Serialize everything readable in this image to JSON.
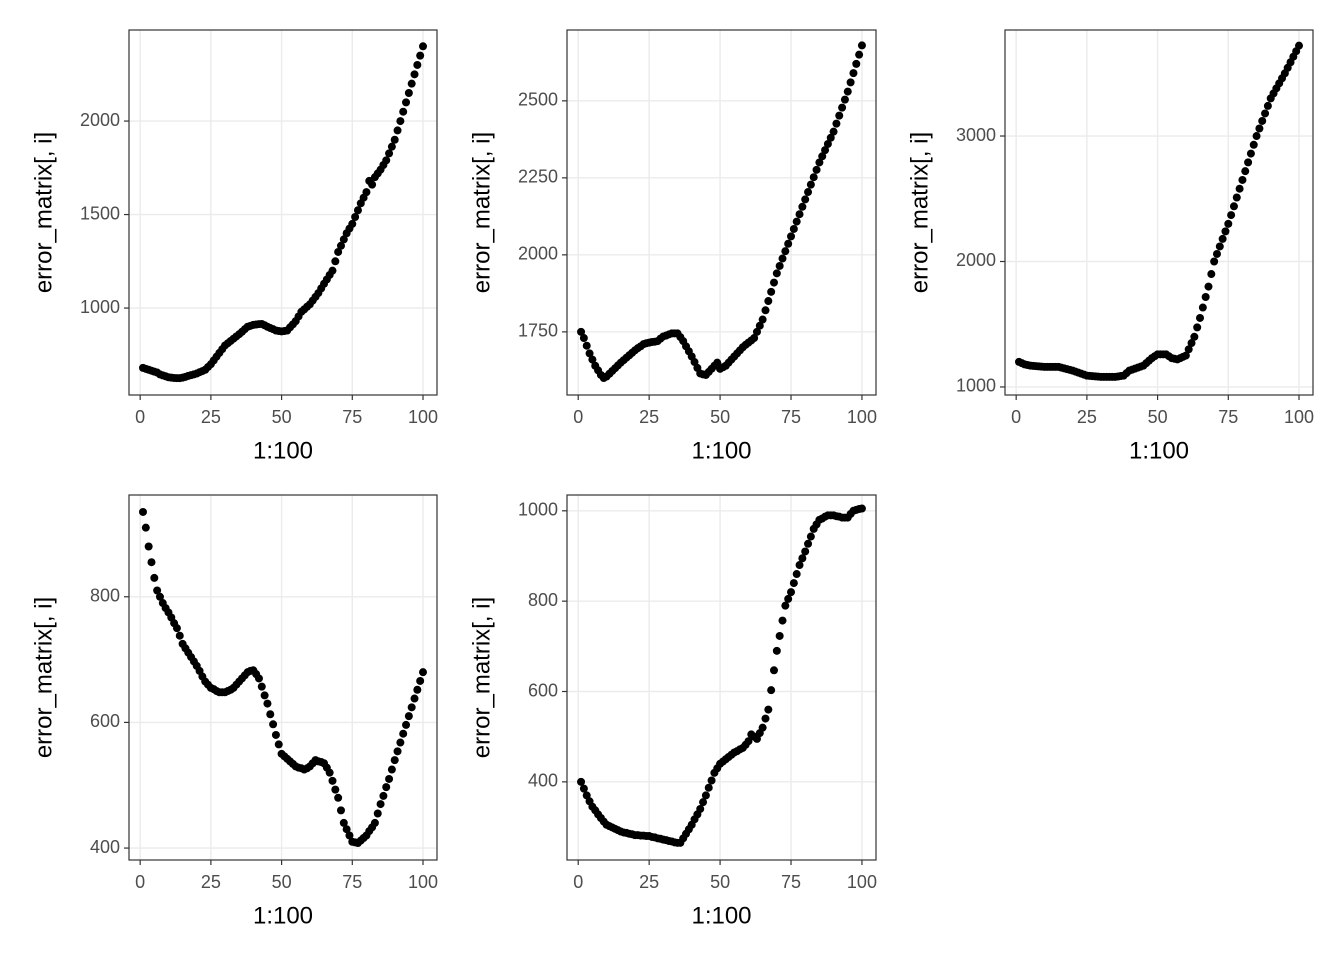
{
  "chart_data": [
    {
      "type": "scatter",
      "x_label": "1:100",
      "y_label": "error_matrix[, i]",
      "color": "#000000",
      "grid": true,
      "xlim": [
        -3.95,
        104.95
      ],
      "xticks": [
        0,
        25,
        50,
        75,
        100
      ],
      "ylim": [
        535,
        2487
      ],
      "yticks": [
        1000,
        1500,
        2000
      ],
      "x": [
        1,
        2,
        3,
        4,
        5,
        6,
        7,
        8,
        9,
        10,
        11,
        12,
        13,
        14,
        15,
        16,
        17,
        18,
        19,
        20,
        21,
        22,
        23,
        24,
        25,
        26,
        27,
        28,
        29,
        30,
        31,
        32,
        33,
        34,
        35,
        36,
        37,
        38,
        39,
        40,
        41,
        42,
        43,
        44,
        45,
        46,
        47,
        48,
        49,
        50,
        51,
        52,
        53,
        54,
        55,
        56,
        57,
        58,
        59,
        60,
        61,
        62,
        63,
        64,
        65,
        66,
        67,
        68,
        69,
        70,
        71,
        72,
        73,
        74,
        75,
        76,
        77,
        78,
        79,
        80,
        81,
        82,
        83,
        84,
        85,
        86,
        87,
        88,
        89,
        90,
        91,
        92,
        93,
        94,
        95,
        96,
        97,
        98,
        99,
        100
      ],
      "values": [
        680,
        675,
        670,
        665,
        660,
        655,
        645,
        640,
        635,
        630,
        628,
        626,
        625,
        625,
        628,
        632,
        637,
        641,
        645,
        650,
        657,
        663,
        670,
        685,
        700,
        720,
        740,
        760,
        780,
        800,
        812,
        824,
        836,
        848,
        860,
        873,
        887,
        900,
        905,
        910,
        912,
        914,
        915,
        908,
        900,
        893,
        887,
        880,
        877,
        875,
        877,
        880,
        897,
        913,
        930,
        955,
        980,
        993,
        1007,
        1020,
        1040,
        1060,
        1080,
        1105,
        1130,
        1153,
        1177,
        1200,
        1250,
        1300,
        1333,
        1367,
        1400,
        1425,
        1450,
        1487,
        1523,
        1560,
        1590,
        1620,
        1680,
        1660,
        1700,
        1720,
        1740,
        1765,
        1790,
        1827,
        1863,
        1900,
        1950,
        2000,
        2050,
        2100,
        2150,
        2200,
        2250,
        2300,
        2350,
        2400
      ]
    },
    {
      "type": "scatter",
      "x_label": "1:100",
      "y_label": "error_matrix[, i]",
      "color": "#000000",
      "grid": true,
      "xlim": [
        -3.95,
        104.95
      ],
      "xticks": [
        0,
        25,
        50,
        75,
        100
      ],
      "ylim": [
        1545,
        2730
      ],
      "yticks": [
        1750,
        2000,
        2250,
        2500
      ],
      "x": [
        1,
        2,
        3,
        4,
        5,
        6,
        7,
        8,
        9,
        10,
        11,
        12,
        13,
        14,
        15,
        16,
        17,
        18,
        19,
        20,
        21,
        22,
        23,
        24,
        25,
        26,
        27,
        28,
        29,
        30,
        31,
        32,
        33,
        34,
        35,
        36,
        37,
        38,
        39,
        40,
        41,
        42,
        43,
        44,
        45,
        46,
        47,
        48,
        49,
        50,
        51,
        52,
        53,
        54,
        55,
        56,
        57,
        58,
        59,
        60,
        61,
        62,
        63,
        64,
        65,
        66,
        67,
        68,
        69,
        70,
        71,
        72,
        73,
        74,
        75,
        76,
        77,
        78,
        79,
        80,
        81,
        82,
        83,
        84,
        85,
        86,
        87,
        88,
        89,
        90,
        91,
        92,
        93,
        94,
        95,
        96,
        97,
        98,
        99,
        100
      ],
      "values": [
        1750,
        1730,
        1705,
        1680,
        1660,
        1640,
        1625,
        1610,
        1600,
        1605,
        1614,
        1623,
        1632,
        1641,
        1650,
        1658,
        1666,
        1674,
        1682,
        1690,
        1697,
        1703,
        1710,
        1713,
        1715,
        1717,
        1718,
        1720,
        1728,
        1735,
        1738,
        1742,
        1745,
        1745,
        1745,
        1733,
        1720,
        1703,
        1687,
        1670,
        1652,
        1633,
        1615,
        1612,
        1610,
        1620,
        1630,
        1640,
        1650,
        1630,
        1635,
        1640,
        1650,
        1660,
        1670,
        1680,
        1690,
        1700,
        1708,
        1715,
        1722,
        1730,
        1750,
        1770,
        1790,
        1820,
        1850,
        1880,
        1910,
        1940,
        1964,
        1988,
        2012,
        2036,
        2060,
        2084,
        2108,
        2132,
        2156,
        2180,
        2204,
        2228,
        2252,
        2276,
        2300,
        2320,
        2340,
        2360,
        2380,
        2400,
        2426,
        2452,
        2478,
        2504,
        2530,
        2560,
        2590,
        2620,
        2650,
        2680
      ]
    },
    {
      "type": "scatter",
      "x_label": "1:100",
      "y_label": "error_matrix[, i]",
      "color": "#000000",
      "grid": true,
      "xlim": [
        -3.95,
        104.95
      ],
      "xticks": [
        0,
        25,
        50,
        75,
        100
      ],
      "ylim": [
        936,
        3845
      ],
      "yticks": [
        1000,
        2000,
        3000
      ],
      "x": [
        1,
        2,
        3,
        4,
        5,
        6,
        7,
        8,
        9,
        10,
        11,
        12,
        13,
        14,
        15,
        16,
        17,
        18,
        19,
        20,
        21,
        22,
        23,
        24,
        25,
        26,
        27,
        28,
        29,
        30,
        31,
        32,
        33,
        34,
        35,
        36,
        37,
        38,
        39,
        40,
        41,
        42,
        43,
        44,
        45,
        46,
        47,
        48,
        49,
        50,
        51,
        52,
        53,
        54,
        55,
        56,
        57,
        58,
        59,
        60,
        61,
        62,
        63,
        64,
        65,
        66,
        67,
        68,
        69,
        70,
        71,
        72,
        73,
        74,
        75,
        76,
        77,
        78,
        79,
        80,
        81,
        82,
        83,
        84,
        85,
        86,
        87,
        88,
        89,
        90,
        91,
        92,
        93,
        94,
        95,
        96,
        97,
        98,
        99,
        100
      ],
      "values": [
        1200,
        1190,
        1180,
        1175,
        1170,
        1168,
        1166,
        1164,
        1162,
        1160,
        1160,
        1160,
        1160,
        1160,
        1160,
        1154,
        1148,
        1142,
        1136,
        1130,
        1122,
        1114,
        1106,
        1098,
        1090,
        1088,
        1086,
        1084,
        1082,
        1080,
        1080,
        1080,
        1080,
        1080,
        1080,
        1083,
        1087,
        1090,
        1110,
        1130,
        1138,
        1146,
        1154,
        1162,
        1170,
        1190,
        1210,
        1230,
        1245,
        1260,
        1260,
        1260,
        1260,
        1245,
        1230,
        1225,
        1220,
        1230,
        1240,
        1250,
        1300,
        1350,
        1400,
        1475,
        1550,
        1633,
        1717,
        1800,
        1900,
        2000,
        2060,
        2120,
        2180,
        2240,
        2300,
        2370,
        2440,
        2510,
        2580,
        2650,
        2720,
        2790,
        2860,
        2930,
        3000,
        3060,
        3120,
        3180,
        3240,
        3300,
        3340,
        3380,
        3420,
        3460,
        3500,
        3544,
        3588,
        3632,
        3676,
        3720
      ]
    },
    {
      "type": "scatter",
      "x_label": "1:100",
      "y_label": "error_matrix[, i]",
      "color": "#000000",
      "grid": true,
      "xlim": [
        -3.95,
        104.95
      ],
      "xticks": [
        0,
        25,
        50,
        75,
        100
      ],
      "ylim": [
        381,
        962
      ],
      "yticks": [
        400,
        600,
        800
      ],
      "x": [
        1,
        2,
        3,
        4,
        5,
        6,
        7,
        8,
        9,
        10,
        11,
        12,
        13,
        14,
        15,
        16,
        17,
        18,
        19,
        20,
        21,
        22,
        23,
        24,
        25,
        26,
        27,
        28,
        29,
        30,
        31,
        32,
        33,
        34,
        35,
        36,
        37,
        38,
        39,
        40,
        41,
        42,
        43,
        44,
        45,
        46,
        47,
        48,
        49,
        50,
        51,
        52,
        53,
        54,
        55,
        56,
        57,
        58,
        59,
        60,
        61,
        62,
        63,
        64,
        65,
        66,
        67,
        68,
        69,
        70,
        71,
        72,
        73,
        74,
        75,
        76,
        77,
        78,
        79,
        80,
        81,
        82,
        83,
        84,
        85,
        86,
        87,
        88,
        89,
        90,
        91,
        92,
        93,
        94,
        95,
        96,
        97,
        98,
        99,
        100
      ],
      "values": [
        935,
        910,
        880,
        855,
        830,
        810,
        800,
        790,
        782,
        775,
        767,
        758,
        750,
        738,
        725,
        718,
        711,
        704,
        697,
        690,
        682,
        673,
        665,
        660,
        655,
        653,
        650,
        648,
        648,
        648,
        650,
        652,
        655,
        660,
        665,
        670,
        675,
        680,
        682,
        683,
        677,
        670,
        657,
        643,
        630,
        613,
        597,
        580,
        565,
        550,
        546,
        542,
        538,
        534,
        530,
        528,
        527,
        525,
        527,
        530,
        535,
        540,
        538,
        537,
        535,
        528,
        520,
        507,
        493,
        480,
        460,
        440,
        430,
        420,
        410,
        409,
        408,
        412,
        416,
        420,
        427,
        433,
        440,
        455,
        470,
        483,
        497,
        510,
        525,
        540,
        554,
        568,
        582,
        596,
        610,
        624,
        638,
        652,
        666,
        680
      ]
    },
    {
      "type": "scatter",
      "x_label": "1:100",
      "y_label": "error_matrix[, i]",
      "color": "#000000",
      "grid": true,
      "xlim": [
        -3.95,
        104.95
      ],
      "xticks": [
        0,
        25,
        50,
        75,
        100
      ],
      "ylim": [
        227,
        1035
      ],
      "yticks": [
        400,
        600,
        800,
        1000
      ],
      "x": [
        1,
        2,
        3,
        4,
        5,
        6,
        7,
        8,
        9,
        10,
        11,
        12,
        13,
        14,
        15,
        16,
        17,
        18,
        19,
        20,
        21,
        22,
        23,
        24,
        25,
        26,
        27,
        28,
        29,
        30,
        31,
        32,
        33,
        34,
        35,
        36,
        37,
        38,
        39,
        40,
        41,
        42,
        43,
        44,
        45,
        46,
        47,
        48,
        49,
        50,
        51,
        52,
        53,
        54,
        55,
        56,
        57,
        58,
        59,
        60,
        61,
        62,
        63,
        64,
        65,
        66,
        67,
        68,
        69,
        70,
        71,
        72,
        73,
        74,
        75,
        76,
        77,
        78,
        79,
        80,
        81,
        82,
        83,
        84,
        85,
        86,
        87,
        88,
        89,
        90,
        91,
        92,
        93,
        94,
        95,
        96,
        97,
        98,
        99,
        100
      ],
      "values": [
        400,
        385,
        370,
        357,
        345,
        337,
        328,
        320,
        312,
        305,
        302,
        299,
        296,
        293,
        290,
        288,
        287,
        285,
        284,
        282,
        282,
        281,
        281,
        280,
        280,
        278,
        277,
        275,
        274,
        272,
        271,
        269,
        268,
        266,
        265,
        265,
        275,
        285,
        295,
        305,
        317,
        328,
        340,
        355,
        370,
        387,
        403,
        420,
        430,
        440,
        445,
        450,
        455,
        460,
        465,
        468,
        472,
        475,
        482,
        490,
        505,
        500,
        495,
        508,
        520,
        540,
        560,
        603,
        647,
        690,
        723,
        757,
        790,
        805,
        820,
        840,
        860,
        880,
        895,
        910,
        927,
        943,
        960,
        970,
        980,
        983,
        987,
        990,
        990,
        990,
        988,
        987,
        985,
        985,
        985,
        993,
        1000,
        1002,
        1004,
        1005
      ]
    }
  ]
}
